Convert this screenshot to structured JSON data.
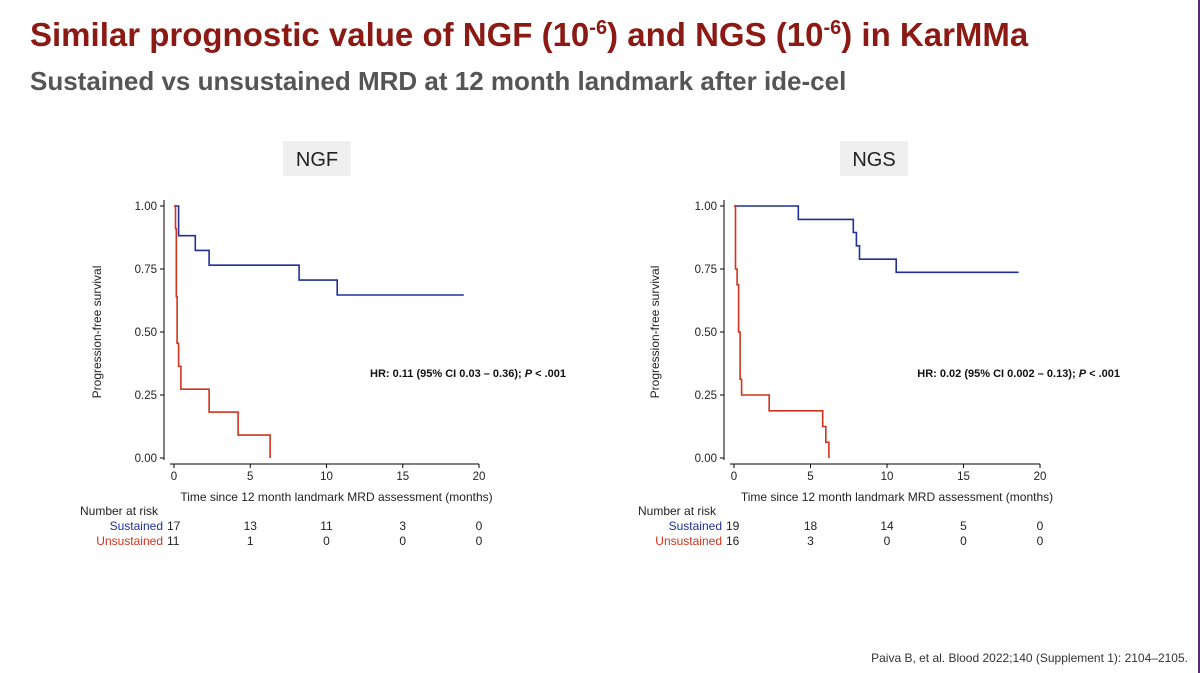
{
  "slide": {
    "title_main": "Similar prognostic value of NGF (10",
    "title_exp1": "-6",
    "title_mid": ") and NGS (10",
    "title_exp2": "-6",
    "title_end": ") in KarMMa",
    "subtitle": "Sustained vs unsustained MRD at 12 month landmark after ide-cel",
    "citation": "Paiva B, et al. Blood 2022;140 (Supplement 1): 2104–2105."
  },
  "colors": {
    "title": "#8b1a14",
    "sustained": "#1f2f9e",
    "unsustained": "#d3321c"
  },
  "chart_data": [
    {
      "type": "line",
      "panel_title": "NGF",
      "xlabel": "Time since 12 month landmark MRD assessment (months)",
      "ylabel": "Progression-free survival",
      "xlim": [
        0,
        20
      ],
      "ylim": [
        0,
        1
      ],
      "x_ticks": [
        "0",
        "5",
        "10",
        "15",
        "20"
      ],
      "y_ticks": [
        "0.00",
        "0.25",
        "0.50",
        "0.75",
        "1.00"
      ],
      "annotation": {
        "pre": "HR: 0.11 (95% CI 0.03 – 0.36); ",
        "p": "P",
        "post": " < .001"
      },
      "series": [
        {
          "name": "Sustained",
          "color": "#1f2f9e",
          "x": [
            0,
            0.3,
            0.3,
            1.4,
            1.4,
            2.3,
            2.3,
            8.2,
            8.2,
            10.7,
            10.7,
            19
          ],
          "y": [
            1.0,
            1.0,
            0.882,
            0.882,
            0.824,
            0.824,
            0.765,
            0.765,
            0.706,
            0.706,
            0.647,
            0.647
          ]
        },
        {
          "name": "Unsustained",
          "color": "#d3321c",
          "x": [
            0,
            0.1,
            0.1,
            0.15,
            0.15,
            0.2,
            0.2,
            0.3,
            0.3,
            0.45,
            0.45,
            2.3,
            2.3,
            4.2,
            4.2,
            6.3,
            6.3
          ],
          "y": [
            1.0,
            1.0,
            0.91,
            0.91,
            0.64,
            0.64,
            0.455,
            0.455,
            0.364,
            0.364,
            0.273,
            0.273,
            0.182,
            0.182,
            0.091,
            0.091,
            0.0
          ]
        }
      ],
      "risk_table": {
        "header": "Number at risk",
        "rows": [
          {
            "label": "Sustained",
            "values": [
              "17",
              "13",
              "11",
              "3",
              "0"
            ]
          },
          {
            "label": "Unsustained",
            "values": [
              "11",
              "1",
              "0",
              "0",
              "0"
            ]
          }
        ]
      }
    },
    {
      "type": "line",
      "panel_title": "NGS",
      "xlabel": "Time since 12 month landmark MRD assessment (months)",
      "ylabel": "Progression-free survival",
      "xlim": [
        0,
        20
      ],
      "ylim": [
        0,
        1
      ],
      "x_ticks": [
        "0",
        "5",
        "10",
        "15",
        "20"
      ],
      "y_ticks": [
        "0.00",
        "0.25",
        "0.50",
        "0.75",
        "1.00"
      ],
      "annotation": {
        "pre": "HR: 0.02 (95% CI 0.002 – 0.13); ",
        "p": "P",
        "post": " < .001"
      },
      "series": [
        {
          "name": "Sustained",
          "color": "#1f2f9e",
          "x": [
            0,
            4.2,
            4.2,
            7.8,
            7.8,
            8.0,
            8.0,
            8.2,
            8.2,
            10.6,
            10.6,
            18.6
          ],
          "y": [
            1.0,
            1.0,
            0.947,
            0.947,
            0.895,
            0.895,
            0.842,
            0.842,
            0.789,
            0.789,
            0.737,
            0.737
          ]
        },
        {
          "name": "Unsustained",
          "color": "#d3321c",
          "x": [
            0,
            0.1,
            0.1,
            0.2,
            0.2,
            0.3,
            0.3,
            0.4,
            0.4,
            0.5,
            0.5,
            2.3,
            2.3,
            5.8,
            5.8,
            6.0,
            6.0,
            6.2,
            6.2
          ],
          "y": [
            1.0,
            1.0,
            0.75,
            0.75,
            0.6875,
            0.6875,
            0.5,
            0.5,
            0.3125,
            0.3125,
            0.25,
            0.25,
            0.1875,
            0.1875,
            0.125,
            0.125,
            0.0625,
            0.0625,
            0.0
          ]
        }
      ],
      "risk_table": {
        "header": "Number at risk",
        "rows": [
          {
            "label": "Sustained",
            "values": [
              "19",
              "18",
              "14",
              "5",
              "0"
            ]
          },
          {
            "label": "Unsustained",
            "values": [
              "16",
              "3",
              "0",
              "0",
              "0"
            ]
          }
        ]
      }
    }
  ]
}
